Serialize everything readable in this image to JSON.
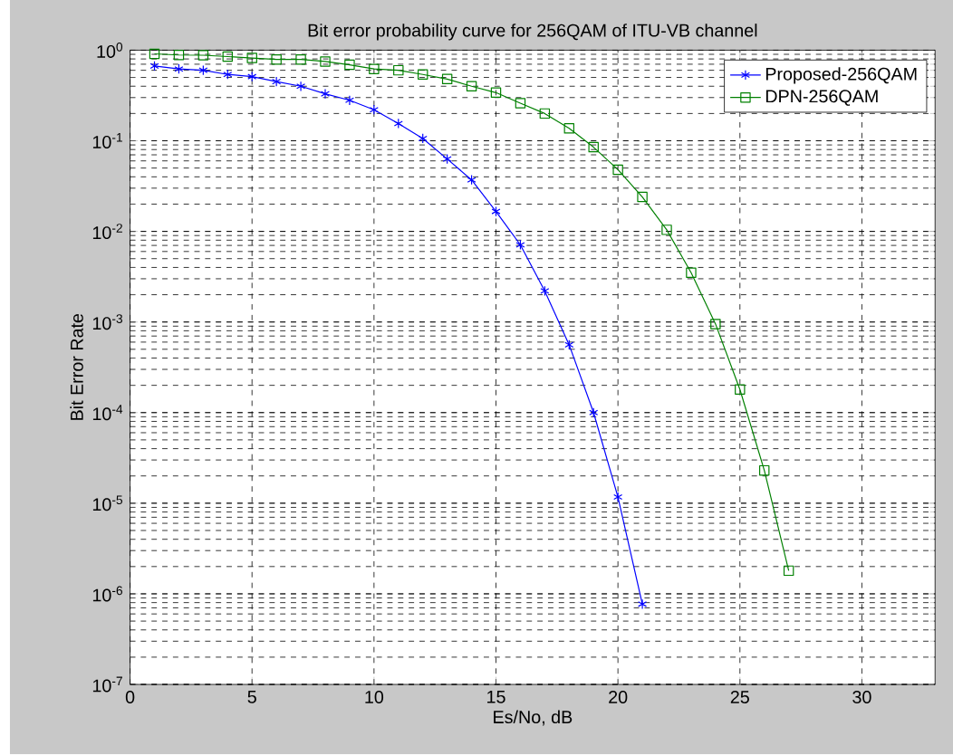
{
  "chart_data": {
    "type": "line",
    "title": "Bit error probability curve for 256QAM of ITU-VB channel",
    "xlabel": "Es/No, dB",
    "ylabel": "Bit Error Rate",
    "xlim": [
      0,
      33
    ],
    "xticks": [
      0,
      5,
      10,
      15,
      20,
      25,
      30
    ],
    "ylim": [
      1e-07,
      1
    ],
    "yticks": [
      {
        "value": 1e-07,
        "label": "10$^{-7}$"
      },
      {
        "value": 1e-06,
        "label": "10$^{-6}$"
      },
      {
        "value": 1e-05,
        "label": "10$^{-5}$"
      },
      {
        "value": 0.0001,
        "label": "10$^{-4}$"
      },
      {
        "value": 0.001,
        "label": "10$^{-3}$"
      },
      {
        "value": 0.01,
        "label": "10$^{-2}$"
      },
      {
        "value": 0.1,
        "label": "10$^{-1}$"
      },
      {
        "value": 1,
        "label": "10$^{0}$"
      }
    ],
    "log": "y",
    "grid": true,
    "legend": "top right",
    "line_style": "solid",
    "series": [
      {
        "name": "Proposed-256QAM",
        "color": "#0000ff",
        "marker": "cross",
        "x": [
          1,
          2,
          3,
          4,
          5,
          6,
          7,
          8,
          9,
          10,
          11,
          12,
          13,
          14,
          15,
          16,
          17,
          18,
          19,
          20,
          21
        ],
        "values": [
          0.67,
          0.62,
          0.6,
          0.54,
          0.51,
          0.45,
          0.4,
          0.33,
          0.28,
          0.22,
          0.155,
          0.106,
          0.063,
          0.037,
          0.0166,
          0.0071,
          0.0022,
          0.00056,
          0.0001,
          1.17e-05,
          7.7e-07
        ]
      },
      {
        "name": "DPN-256QAM",
        "color": "#008000",
        "marker": "square",
        "x": [
          1,
          2,
          3,
          4,
          5,
          6,
          7,
          8,
          9,
          10,
          11,
          12,
          13,
          14,
          15,
          16,
          17,
          18,
          19,
          20,
          21,
          22,
          23,
          24,
          25,
          26,
          27
        ],
        "values": [
          0.91,
          0.885,
          0.88,
          0.85,
          0.82,
          0.79,
          0.79,
          0.75,
          0.69,
          0.62,
          0.6,
          0.54,
          0.48,
          0.4,
          0.34,
          0.26,
          0.2,
          0.137,
          0.085,
          0.048,
          0.024,
          0.0104,
          0.0035,
          0.00095,
          0.00018,
          2.3e-05,
          1.8e-06
        ]
      }
    ]
  }
}
